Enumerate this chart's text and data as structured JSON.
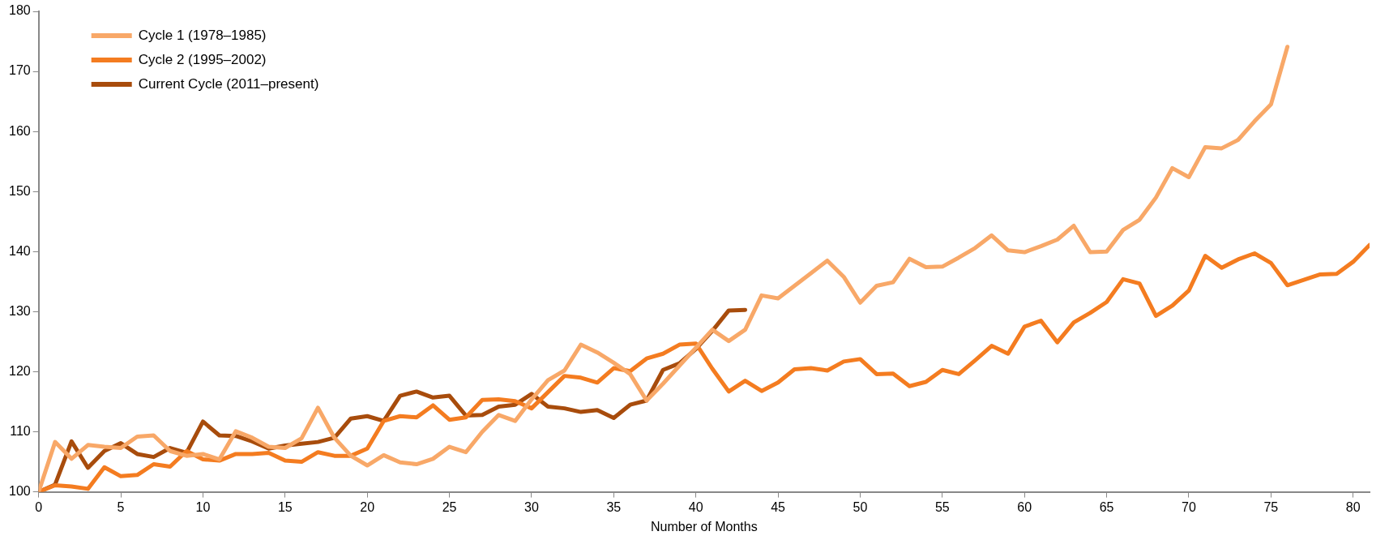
{
  "chart_data": {
    "type": "line",
    "xlabel": "Number of Months",
    "x": [
      0,
      1,
      2,
      3,
      4,
      5,
      6,
      7,
      8,
      9,
      10,
      11,
      12,
      13,
      14,
      15,
      16,
      17,
      18,
      19,
      20,
      21,
      22,
      23,
      24,
      25,
      26,
      27,
      28,
      29,
      30,
      31,
      32,
      33,
      34,
      35,
      36,
      37,
      38,
      39,
      40,
      41,
      42,
      43,
      44,
      45,
      46,
      47,
      48,
      49,
      50,
      51,
      52,
      53,
      54,
      55,
      56,
      57,
      58,
      59,
      60,
      61,
      62,
      63,
      64,
      65,
      66,
      67,
      68,
      69,
      70,
      71,
      72,
      73,
      74,
      75,
      76,
      77,
      78,
      79,
      80,
      81
    ],
    "xlim": [
      0,
      81
    ],
    "xticks": [
      0,
      5,
      10,
      15,
      20,
      25,
      30,
      35,
      40,
      45,
      50,
      55,
      60,
      65,
      70,
      75,
      80
    ],
    "ylim": [
      100,
      180
    ],
    "yticks": [
      100,
      110,
      120,
      130,
      140,
      150,
      160,
      170,
      180
    ],
    "grid": false,
    "legend": "top left",
    "marker": "none",
    "line_style": "solid",
    "series": [
      {
        "name": "Cycle 1 (1978–1985)",
        "color": "#f8a868",
        "x": [
          0,
          1,
          2,
          3,
          4,
          5,
          6,
          7,
          8,
          9,
          10,
          11,
          12,
          13,
          14,
          15,
          16,
          17,
          18,
          19,
          20,
          21,
          22,
          23,
          24,
          25,
          26,
          27,
          28,
          29,
          30,
          31,
          32,
          33,
          34,
          35,
          36,
          37,
          38,
          39,
          40,
          41,
          42,
          43,
          44,
          45,
          46,
          47,
          48,
          49,
          50,
          51,
          52,
          53,
          54,
          55,
          56,
          57,
          58,
          59,
          60,
          61,
          62,
          63,
          64,
          65,
          66,
          67,
          68,
          69,
          70,
          71,
          72,
          73,
          74,
          75,
          76
        ],
        "values": [
          100,
          108.3,
          105.5,
          107.8,
          107.5,
          107.3,
          109.2,
          109.4,
          106.8,
          106,
          106.3,
          105.4,
          110.1,
          109,
          107.5,
          107.3,
          108.9,
          114,
          109,
          106,
          104.4,
          106.1,
          104.9,
          104.6,
          105.5,
          107.5,
          106.6,
          110,
          112.8,
          111.8,
          115.4,
          118.6,
          120.2,
          124.5,
          123.2,
          121.5,
          119.6,
          115.2,
          118,
          121,
          124,
          127,
          125.1,
          127,
          132.7,
          132.2,
          134.3,
          136.4,
          138.5,
          135.8,
          131.5,
          134.3,
          134.9,
          138.8,
          137.4,
          137.5,
          139,
          140.6,
          142.7,
          140.2,
          139.9,
          140.9,
          142,
          144.3,
          139.9,
          140,
          143.6,
          145.3,
          149,
          153.9,
          152.4,
          157.4,
          157.2,
          158.6,
          161.7,
          164.5,
          174.1
        ]
      },
      {
        "name": "Cycle 2 (1995–2002)",
        "color": "#f47c20",
        "values": [
          100,
          101.1,
          100.9,
          100.5,
          104.1,
          102.6,
          102.8,
          104.6,
          104.2,
          106.8,
          105.4,
          105.2,
          106.3,
          106.3,
          106.5,
          105.2,
          105,
          106.6,
          106,
          106,
          107.2,
          111.8,
          112.6,
          112.4,
          114.4,
          112,
          112.4,
          115.3,
          115.4,
          115.1,
          113.9,
          116.6,
          119.3,
          119,
          118.2,
          120.6,
          120.1,
          122.2,
          123,
          124.5,
          124.7,
          120.5,
          116.7,
          118.5,
          116.8,
          118.2,
          120.4,
          120.6,
          120.2,
          121.7,
          122.1,
          119.6,
          119.7,
          117.6,
          118.3,
          120.3,
          119.6,
          121.9,
          124.3,
          123,
          127.5,
          128.5,
          124.9,
          128.2,
          129.8,
          131.6,
          135.4,
          134.7,
          129.3,
          131,
          133.5,
          139.3,
          137.3,
          138.7,
          139.7,
          138.1,
          134.4,
          135.3,
          136.2,
          136.3,
          138.3,
          141.1
        ]
      },
      {
        "name": "Current Cycle (2011–present)",
        "color": "#a84c0c",
        "x": [
          0,
          1,
          2,
          3,
          4,
          5,
          6,
          7,
          8,
          9,
          10,
          11,
          12,
          13,
          14,
          15,
          16,
          17,
          18,
          19,
          20,
          21,
          22,
          23,
          24,
          25,
          26,
          27,
          28,
          29,
          30,
          31,
          32,
          33,
          34,
          35,
          36,
          37,
          38,
          39,
          40,
          41,
          42,
          43
        ],
        "values": [
          100,
          101.2,
          108.4,
          104,
          106.8,
          108.1,
          106.3,
          105.8,
          107.3,
          106.5,
          111.7,
          109.4,
          109.3,
          108.4,
          107.2,
          107.7,
          108,
          108.3,
          109,
          112.2,
          112.6,
          111.8,
          116,
          116.7,
          115.7,
          116,
          112.7,
          112.8,
          114.2,
          114.5,
          116.3,
          114.2,
          113.9,
          113.3,
          113.6,
          112.3,
          114.5,
          115.2,
          120.3,
          121.4,
          123.8,
          126.8,
          130.2,
          130.3
        ]
      }
    ]
  }
}
